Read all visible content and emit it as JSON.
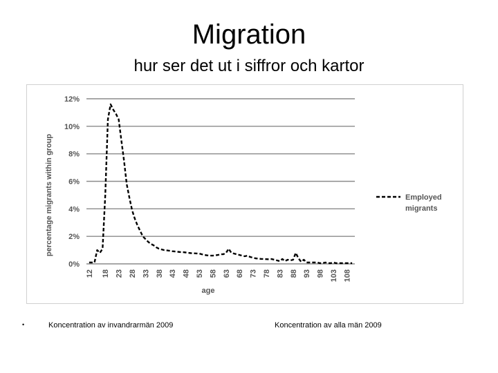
{
  "slide": {
    "title": "Migration",
    "subtitle": "hur ser det ut i siffror och kartor",
    "bullet": "•",
    "caption_left": "Koncentration av invandrarmän 2009",
    "caption_right": "Koncentration av alla män 2009"
  },
  "chart_data": {
    "type": "line",
    "title": "",
    "xlabel": "age",
    "ylabel": "percentage migrants within group",
    "ylim": [
      0,
      12
    ],
    "grid": true,
    "legend_position": "right",
    "y_ticks": [
      "0%",
      "2%",
      "4%",
      "6%",
      "8%",
      "10%",
      "12%"
    ],
    "x_tick_labels": [
      "12",
      "18",
      "23",
      "28",
      "33",
      "38",
      "43",
      "48",
      "53",
      "58",
      "63",
      "68",
      "73",
      "78",
      "83",
      "88",
      "93",
      "98",
      "103",
      "108"
    ],
    "series": [
      {
        "name": "Employed migrants",
        "style": "dashed",
        "color": "#000000",
        "x": [
          12,
          13,
          14,
          15,
          16,
          17,
          18,
          19,
          20,
          21,
          22,
          23,
          24,
          25,
          26,
          27,
          28,
          29,
          30,
          31,
          32,
          33,
          34,
          35,
          36,
          37,
          38,
          39,
          40,
          41,
          42,
          43,
          44,
          45,
          46,
          47,
          48,
          49,
          50,
          51,
          52,
          53,
          54,
          55,
          56,
          57,
          58,
          59,
          60,
          61,
          62,
          63,
          64,
          65,
          66,
          67,
          68,
          69,
          70,
          71,
          72,
          73,
          74,
          75,
          76,
          77,
          78,
          79,
          80,
          81,
          82,
          83,
          84,
          85,
          86,
          87,
          88,
          89,
          90,
          91,
          92,
          93,
          94,
          95,
          96,
          97,
          98,
          99,
          100,
          101,
          102,
          103,
          104,
          105,
          106,
          107,
          108,
          109,
          110
        ],
        "values": [
          0.1,
          0.1,
          0.1,
          1.0,
          0.8,
          1.1,
          5.0,
          10.5,
          11.6,
          11.2,
          10.9,
          10.5,
          9.0,
          7.5,
          5.8,
          4.8,
          3.9,
          3.3,
          2.8,
          2.4,
          2.0,
          1.8,
          1.6,
          1.45,
          1.35,
          1.2,
          1.1,
          1.05,
          1.0,
          0.98,
          0.95,
          0.92,
          0.9,
          0.88,
          0.86,
          0.85,
          0.83,
          0.8,
          0.78,
          0.77,
          0.76,
          0.75,
          0.7,
          0.65,
          0.62,
          0.6,
          0.6,
          0.62,
          0.65,
          0.7,
          0.7,
          0.8,
          1.1,
          0.8,
          0.75,
          0.7,
          0.65,
          0.6,
          0.55,
          0.6,
          0.5,
          0.45,
          0.4,
          0.38,
          0.36,
          0.35,
          0.34,
          0.33,
          0.35,
          0.3,
          0.25,
          0.2,
          0.35,
          0.2,
          0.3,
          0.25,
          0.3,
          0.8,
          0.4,
          0.15,
          0.3,
          0.1,
          0.1,
          0.1,
          0.1,
          0.1,
          0.05,
          0.05,
          0.1,
          0.05,
          0.05,
          0.1,
          0.05,
          0.05,
          0.05,
          0.05,
          0.05,
          0.05,
          0.05
        ]
      }
    ]
  }
}
